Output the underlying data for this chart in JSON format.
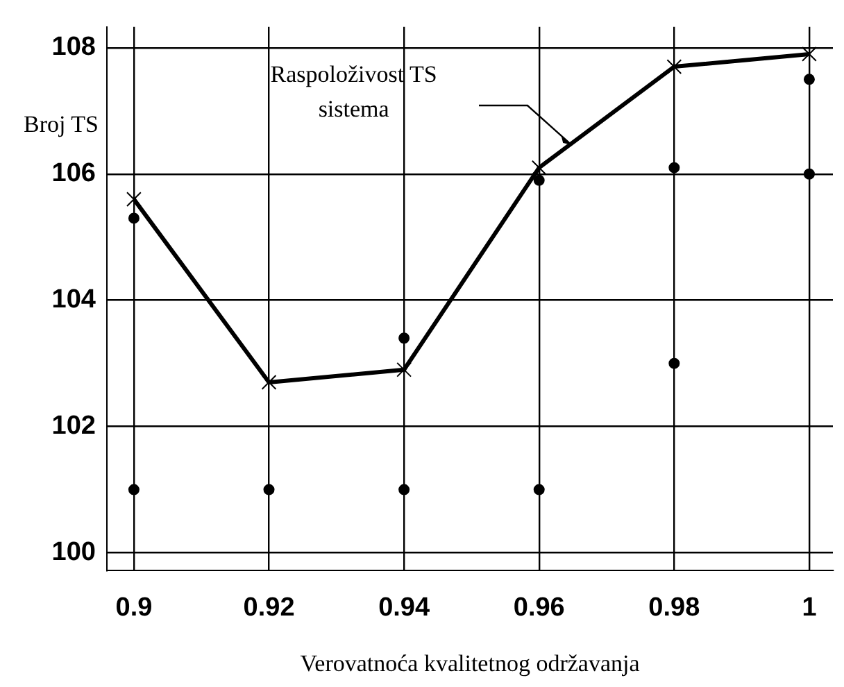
{
  "chart_data": {
    "type": "line",
    "xlabel": "Verovatnoća kvalitetnog održavanja",
    "ylabel": "Broj TS",
    "x": [
      0.9,
      0.92,
      0.94,
      0.96,
      0.98,
      1
    ],
    "series": [
      {
        "name": "Raspoloživost TS sistema",
        "color": "#000000",
        "marker": "cross",
        "values": [
          105.6,
          102.7,
          102.9,
          106.1,
          107.7,
          107.9
        ]
      },
      {
        "type": "scatter",
        "color": "#000000",
        "marker": "circle",
        "values": [
          105.3,
          null,
          103.4,
          105.9,
          106.1,
          107.5
        ]
      },
      {
        "type": "scatter",
        "color": "#000000",
        "marker": "circle",
        "values": [
          101,
          101,
          101,
          101,
          103,
          106
        ]
      }
    ],
    "xlim": [
      0.896,
      1.0035
    ],
    "xticks": [
      0.9,
      0.92,
      0.94,
      0.96,
      0.98,
      1
    ],
    "ylim": [
      99.72,
      108.33
    ],
    "yticks": [
      100,
      102,
      104,
      106,
      108
    ],
    "grid": true,
    "legend": false
  }
}
